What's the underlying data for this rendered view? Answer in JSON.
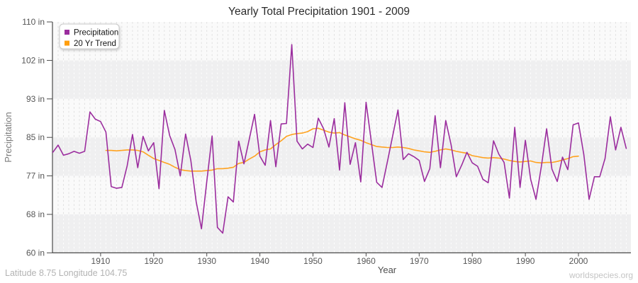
{
  "title": "Yearly Total Precipitation 1901 - 2009",
  "axes": {
    "y_label": "Precipitation",
    "x_label": "Year",
    "y_tick_labels": [
      "110 in",
      "102 in",
      "93 in",
      "85 in",
      "77 in",
      "68 in",
      "60 in"
    ],
    "y_tick_values": [
      110,
      102,
      93,
      85,
      77,
      68,
      60
    ],
    "x_tick_labels": [
      "1910",
      "1920",
      "1930",
      "1940",
      "1950",
      "1960",
      "1970",
      "1980",
      "1990",
      "2000"
    ],
    "x_tick_values": [
      1910,
      1920,
      1930,
      1940,
      1950,
      1960,
      1970,
      1980,
      1990,
      2000
    ]
  },
  "legend": {
    "items": [
      {
        "label": "Precipitation",
        "color": "#9B2D9E",
        "swatch": "square-icon"
      },
      {
        "label": "20 Yr Trend",
        "color": "#FF9E0E",
        "swatch": "square-icon"
      }
    ]
  },
  "footer": {
    "left": "Latitude 8.75 Longitude 104.75",
    "right": "worldspecies.org"
  },
  "colors": {
    "precipitation_line": "#9B2D9E",
    "trend_line": "#FFA21F",
    "band_gray": "#efeff0",
    "band_light": "#fafafa",
    "grid_on_light": "#e0e0e0",
    "grid_on_gray": "#fdfdfd",
    "axis": "#4a4a4a"
  },
  "chart_data": {
    "type": "line",
    "title": "Yearly Total Precipitation 1901 - 2009",
    "xlabel": "Year",
    "ylabel": "Precipitation",
    "x_range": [
      1901,
      2009
    ],
    "ylim_in": [
      60,
      110
    ],
    "grid": "vertical-dashed-yearly",
    "legend_position": "top-left-inside",
    "series": [
      {
        "name": "Precipitation",
        "color": "#9B2D9E",
        "x_start": 1901,
        "values": [
          81.9,
          83.4,
          81.3,
          81.6,
          82.1,
          81.7,
          82.1,
          90.3,
          88.8,
          88.3,
          86.1,
          74.5,
          74.1,
          74.3,
          79.1,
          85.6,
          78.7,
          85.2,
          82.2,
          83.9,
          74.0,
          90.6,
          85.4,
          82.5,
          77.0,
          85.7,
          80.2,
          71.0,
          65.0,
          75.7,
          85.3,
          65.3,
          64.1,
          72.1,
          70.9,
          84.2,
          79.5,
          84.6,
          89.8,
          81.1,
          79.2,
          88.5,
          78.9,
          87.8,
          87.9,
          105.3,
          84.2,
          82.6,
          83.6,
          82.9,
          89.0,
          86.8,
          83.0,
          88.9,
          78.2,
          92.2,
          79.4,
          83.9,
          75.6,
          92.3,
          84.0,
          75.5,
          74.3,
          79.9,
          85.3,
          90.7,
          80.4,
          81.6,
          81.0,
          80.2,
          75.7,
          78.5,
          89.5,
          78.7,
          88.5,
          83.5,
          76.8,
          79.2,
          81.9,
          79.7,
          79.0,
          76.2,
          75.4,
          84.3,
          81.5,
          79.8,
          71.8,
          87.1,
          74.3,
          84.4,
          76.2,
          71.5,
          78.9,
          86.8,
          78.4,
          75.7,
          80.9,
          78.3,
          87.6,
          88.0,
          81.5,
          71.5,
          76.8,
          76.8,
          80.6,
          89.3,
          82.4,
          87.1,
          82.7
        ]
      },
      {
        "name": "20 Yr Trend",
        "color": "#FFA21F",
        "x_start": 1911,
        "values": [
          82.3,
          82.3,
          82.2,
          82.3,
          82.4,
          82.4,
          82.3,
          82.0,
          81.3,
          80.6,
          80.2,
          79.8,
          79.4,
          78.8,
          78.3,
          78.1,
          78.0,
          78.0,
          78.0,
          78.1,
          78.2,
          78.5,
          78.5,
          78.6,
          78.8,
          79.6,
          79.8,
          80.5,
          81.1,
          82.0,
          82.4,
          82.6,
          83.5,
          84.3,
          85.2,
          85.6,
          85.8,
          85.9,
          86.2,
          86.8,
          86.9,
          86.5,
          86.1,
          85.9,
          86.0,
          85.5,
          85.1,
          84.7,
          84.4,
          83.9,
          83.5,
          83.1,
          83.0,
          82.9,
          82.9,
          83.0,
          82.9,
          82.7,
          82.4,
          82.2,
          82.0,
          81.9,
          82.1,
          82.4,
          82.6,
          82.4,
          82.1,
          81.9,
          81.7,
          81.2,
          81.0,
          80.8,
          80.7,
          80.8,
          80.7,
          80.5,
          80.2,
          80.0,
          79.9,
          80.0,
          80.1,
          79.8,
          79.7,
          79.8,
          79.8,
          80.0,
          80.3,
          80.6,
          81.0,
          81.1
        ]
      }
    ]
  }
}
